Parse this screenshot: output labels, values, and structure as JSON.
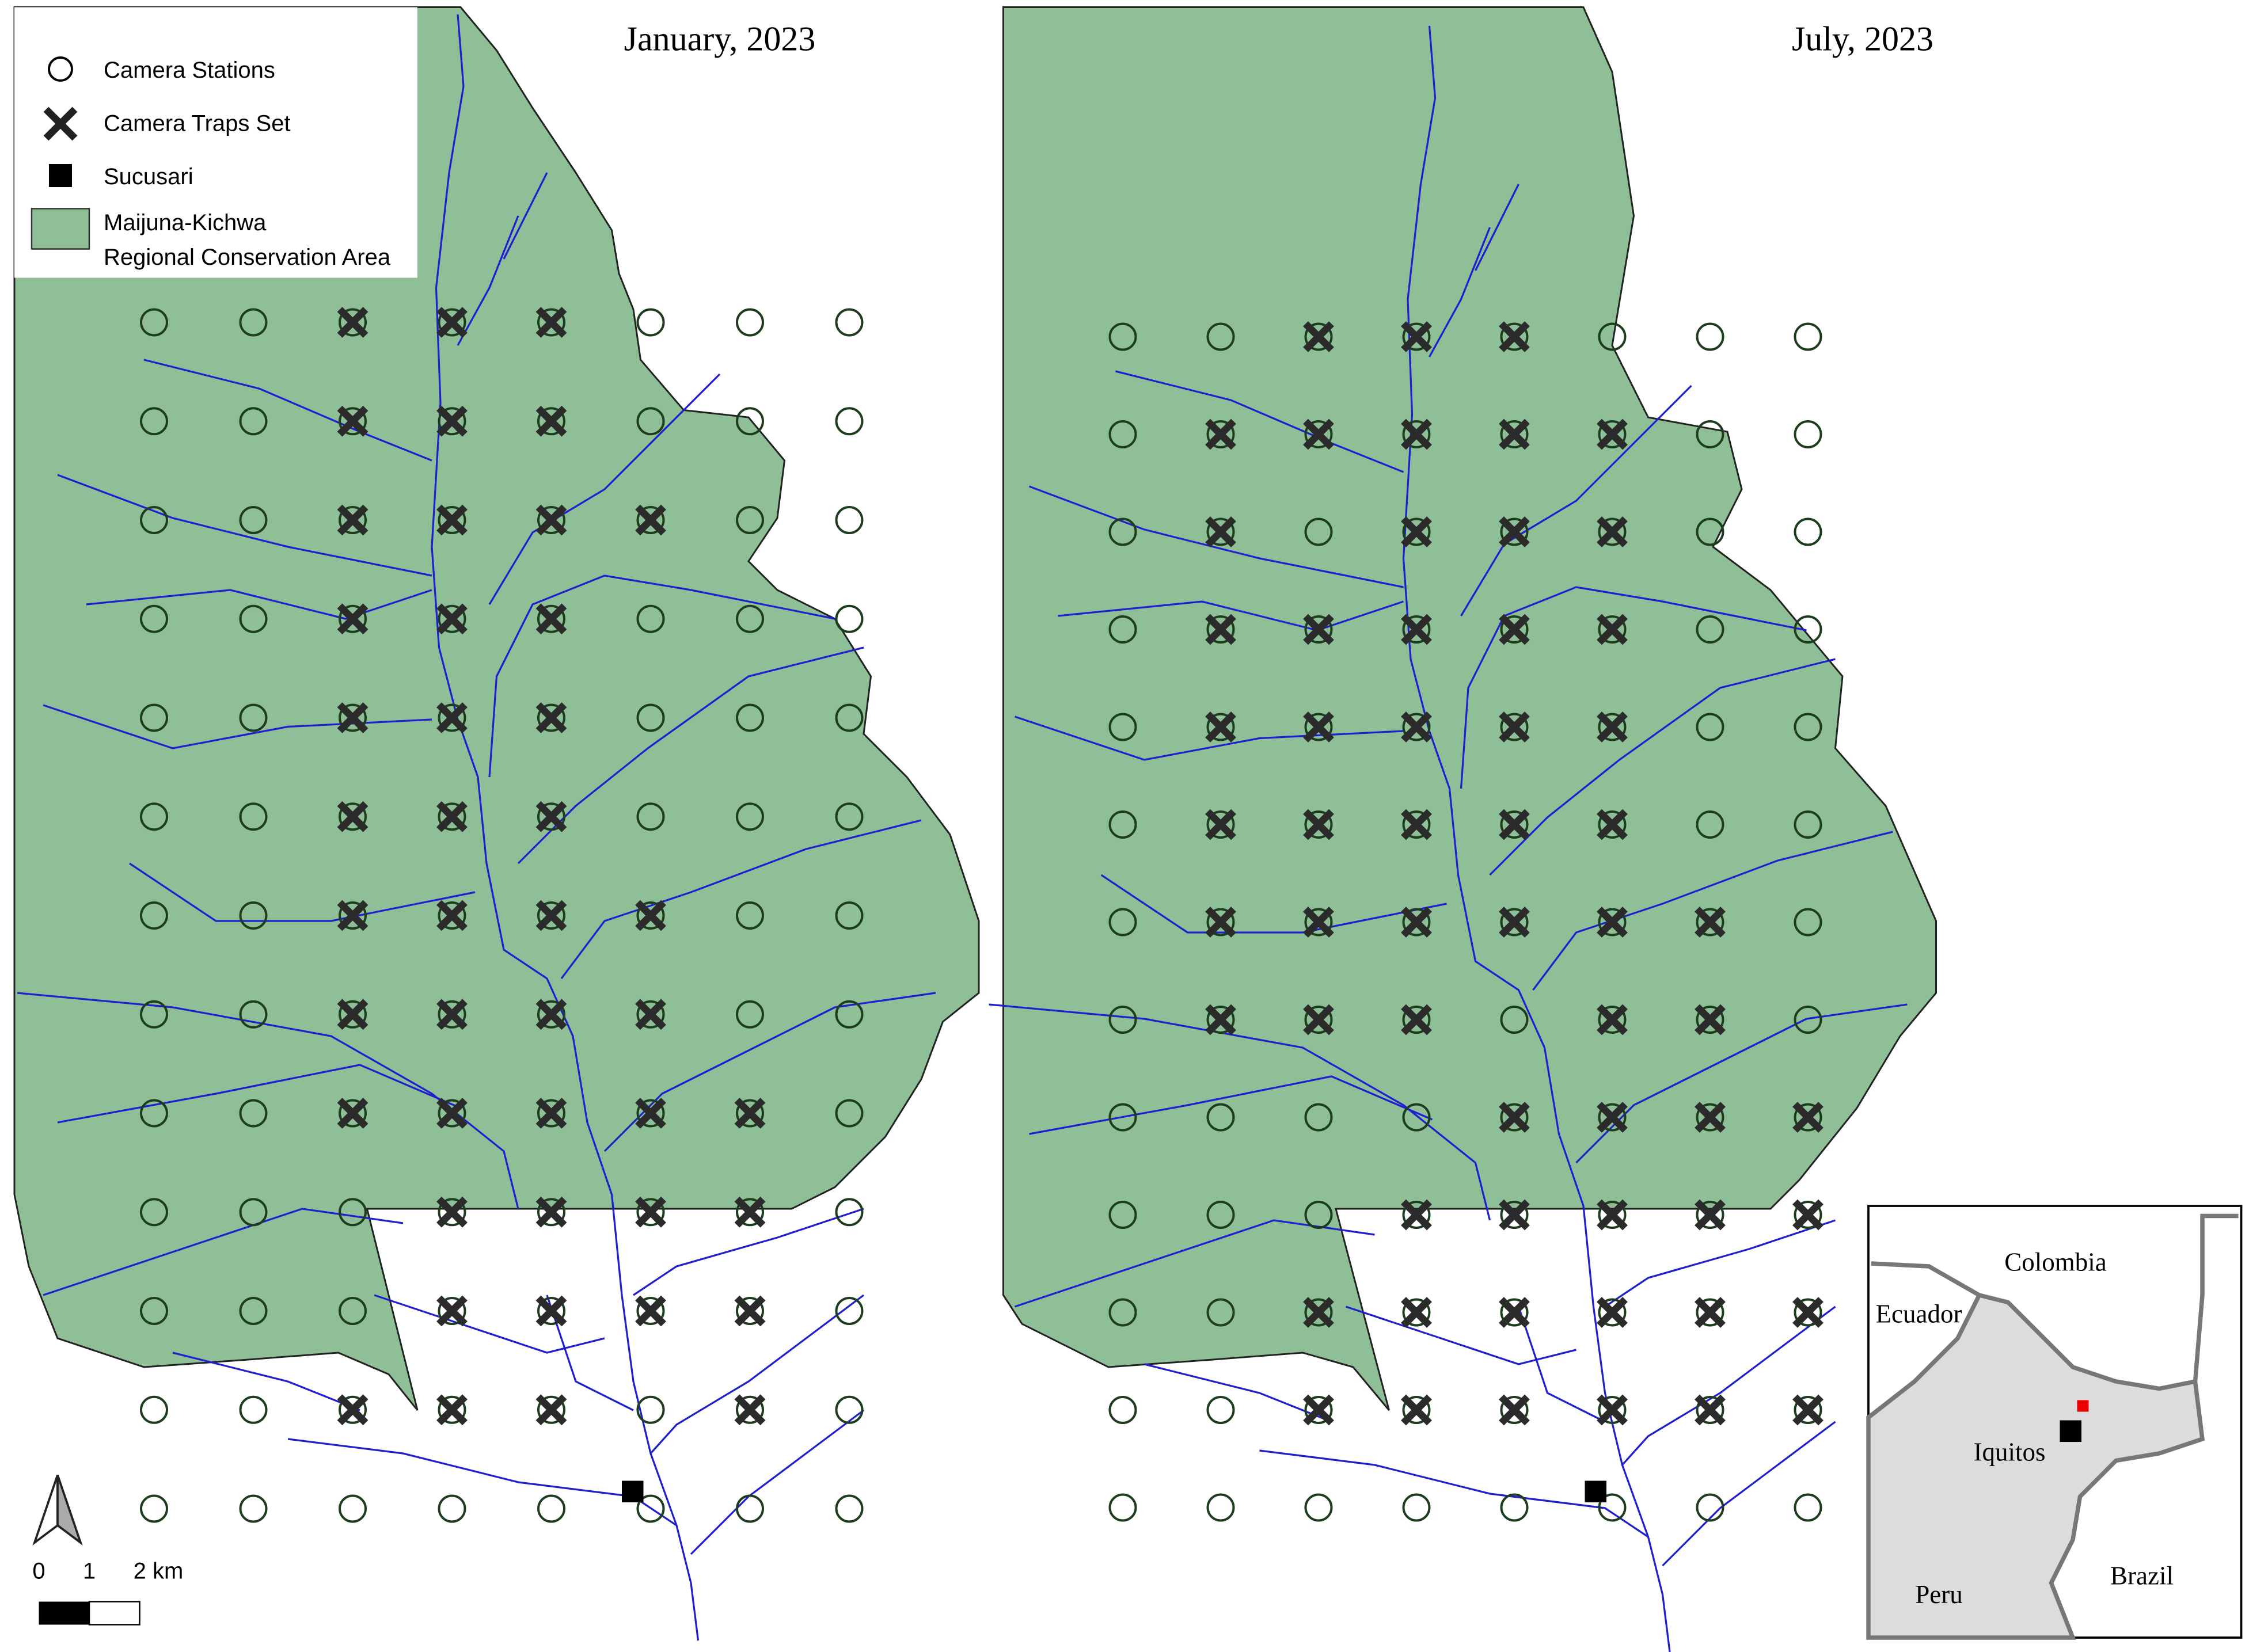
{
  "panels": [
    {
      "title": "January, 2023"
    },
    {
      "title": "July, 2023"
    }
  ],
  "legend": {
    "items": [
      "Camera Stations",
      "Camera Traps Set",
      "Sucusari"
    ],
    "area_label": [
      "Maijuna-Kichwa",
      "Regional Conservation Area"
    ]
  },
  "scale_bar": {
    "labels": [
      "0",
      "1",
      "2 km"
    ]
  },
  "inset": {
    "labels": [
      "Colombia",
      "Ecuador",
      "Iquitos",
      "Peru",
      "Brazil"
    ]
  }
}
